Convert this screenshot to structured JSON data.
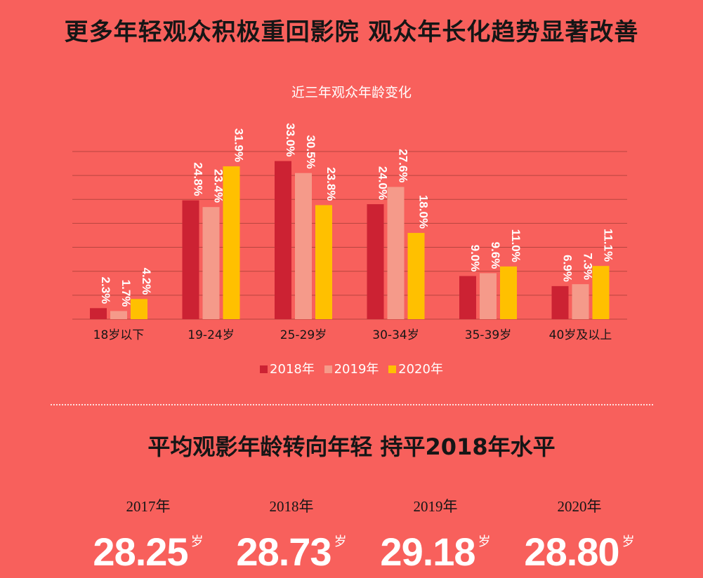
{
  "header": {
    "title": "更多年轻观众积极重回影院 观众年长化趋势显著改善"
  },
  "chart_data": {
    "type": "bar",
    "title": "近三年观众年龄变化",
    "categories": [
      "18岁以下",
      "19-24岁",
      "25-29岁",
      "30-34岁",
      "35-39岁",
      "40岁及以上"
    ],
    "series": [
      {
        "name": "2018年",
        "values": [
          2.3,
          24.8,
          33.0,
          24.0,
          9.0,
          6.9
        ],
        "labels": [
          "2.3%",
          "24.8%",
          "33.0%",
          "24.0%",
          "9.0%",
          "6.9%"
        ],
        "color": "#cc2233"
      },
      {
        "name": "2019年",
        "values": [
          1.7,
          23.4,
          30.5,
          27.6,
          9.6,
          7.3
        ],
        "labels": [
          "1.7%",
          "23.4%",
          "30.5%",
          "27.6%",
          "9.6%",
          "7.3%"
        ],
        "color": "#f59a8a"
      },
      {
        "name": "2020年",
        "values": [
          4.2,
          31.9,
          23.8,
          18.0,
          11.0,
          11.1
        ],
        "labels": [
          "4.2%",
          "31.9%",
          "23.8%",
          "18.0%",
          "11.0%",
          "11.1%"
        ],
        "color": "#ffc000"
      }
    ],
    "ylim": [
      0,
      35
    ],
    "grid": true,
    "legend_position": "bottom"
  },
  "section2": {
    "title": "平均观影年龄转向年轻 持平2018年水平",
    "unit": "岁",
    "stats": [
      {
        "year": "2017年",
        "value": "28.25"
      },
      {
        "year": "2018年",
        "value": "28.73"
      },
      {
        "year": "2019年",
        "value": "29.18"
      },
      {
        "year": "2020年",
        "value": "28.80"
      }
    ]
  }
}
